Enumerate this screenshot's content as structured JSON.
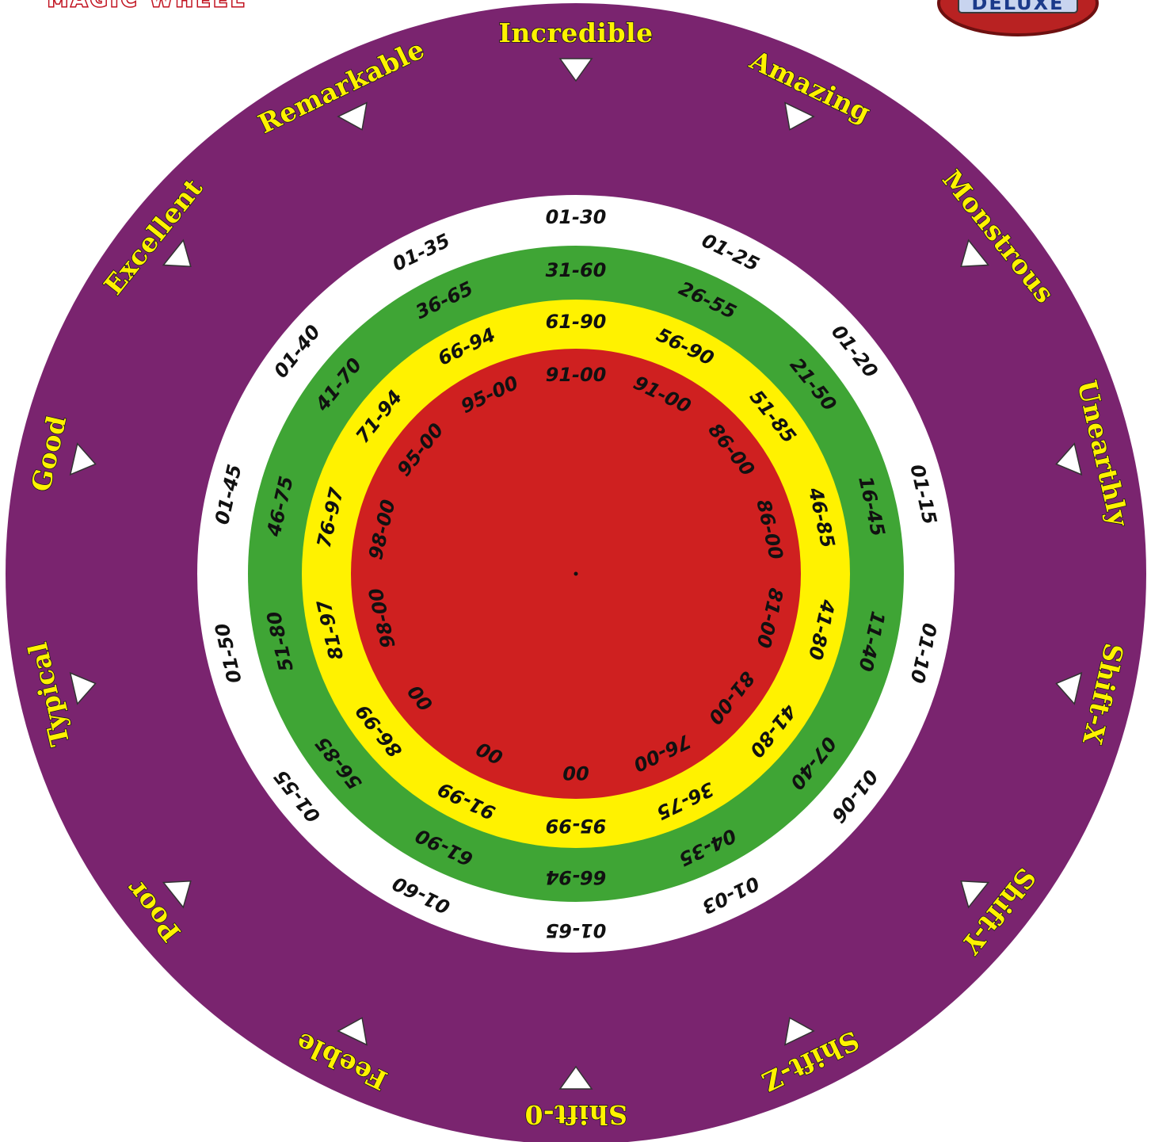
{
  "header": {
    "title_text": "MAGIC WHEEL",
    "logo_text": "DELUXE"
  },
  "colors": {
    "outer": "#7a246f",
    "white_ring": "#ffffff",
    "green_ring": "#3fa535",
    "yellow_ring": "#fff200",
    "red_core": "#cf2020",
    "rank_text": "#fff200"
  },
  "ranks": [
    {
      "label": "Incredible",
      "flipped": false
    },
    {
      "label": "Amazing",
      "flipped": false
    },
    {
      "label": "Monstrous",
      "flipped": false
    },
    {
      "label": "Unearthly",
      "flipped": false
    },
    {
      "label": "Shift-X",
      "flipped": true
    },
    {
      "label": "Shift-Y",
      "flipped": true
    },
    {
      "label": "Shift-Z",
      "flipped": true
    },
    {
      "label": "Shift-0",
      "flipped": true
    },
    {
      "label": "Feeble",
      "flipped": true
    },
    {
      "label": "Poor",
      "flipped": true
    },
    {
      "label": "Typical",
      "flipped": false
    },
    {
      "label": "Good",
      "flipped": false
    },
    {
      "label": "Excellent",
      "flipped": false
    },
    {
      "label": "Remarkable",
      "flipped": false
    }
  ],
  "white_ring": [
    "01-30",
    "01-25",
    "01-20",
    "01-15",
    "01-10",
    "01-06",
    "01-03",
    "01-65",
    "01-60",
    "01-55",
    "01-50",
    "01-45",
    "01-40",
    "01-35"
  ],
  "green_ring": [
    "31-60",
    "26-55",
    "21-50",
    "16-45",
    "11-40",
    "07-40",
    "04-35",
    "66-94",
    "61-90",
    "56-85",
    "51-80",
    "46-75",
    "41-70",
    "36-65"
  ],
  "yellow_ring": [
    "61-90",
    "56-90",
    "51-85",
    "46-85",
    "41-80",
    "41-80",
    "36-75",
    "95-99",
    "91-99",
    "86-99",
    "81-97",
    "76-97",
    "71-94",
    "66-94"
  ],
  "red_core": [
    "91-00",
    "91-00",
    "86-00",
    "86-00",
    "81-00",
    "81-00",
    "76-00",
    "00",
    "00",
    "00",
    "98-00",
    "98-00",
    "95-00",
    "95-00"
  ]
}
